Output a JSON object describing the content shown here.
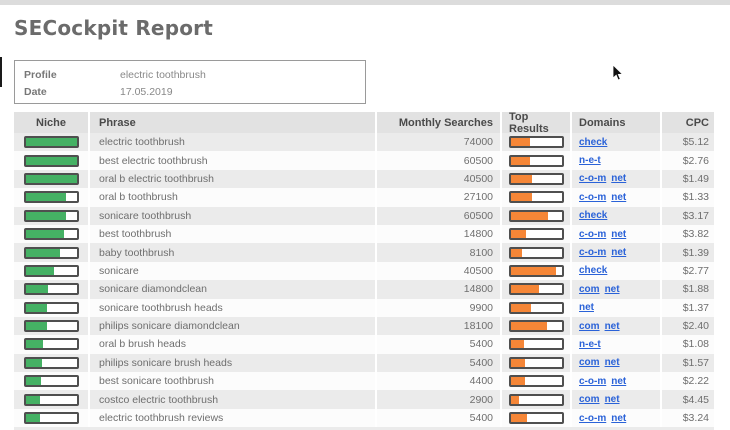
{
  "page": {
    "title": "SECockpit Report"
  },
  "profile_box": {
    "profile_label": "Profile",
    "profile_value": "electric toothbrush",
    "date_label": "Date",
    "date_value": "17.05.2019"
  },
  "colors": {
    "niche_bar_fill": "#45b164",
    "top_results_bar_fill": "#f58637",
    "link": "#2a62d8",
    "header_bg": "#e2e2e2",
    "row_alt_bg": "#ebebeb"
  },
  "table": {
    "columns": [
      "Niche",
      "Phrase",
      "Monthly Searches",
      "Top Results",
      "Domains",
      "CPC"
    ],
    "rows": [
      {
        "niche_pct": 100,
        "phrase": "electric toothbrush",
        "monthly_searches": "74000",
        "top_results_pct": 37,
        "domains": [
          "check"
        ],
        "cpc": "$5.12"
      },
      {
        "niche_pct": 100,
        "phrase": "best electric toothbrush",
        "monthly_searches": "60500",
        "top_results_pct": 37,
        "domains": [
          "n-e-t"
        ],
        "cpc": "$2.76"
      },
      {
        "niche_pct": 100,
        "phrase": "oral b electric toothbrush",
        "monthly_searches": "40500",
        "top_results_pct": 42,
        "domains": [
          "c-o-m",
          "net"
        ],
        "cpc": "$1.49"
      },
      {
        "niche_pct": 80,
        "phrase": "oral b toothbrush",
        "monthly_searches": "27100",
        "top_results_pct": 42,
        "domains": [
          "c-o-m",
          "net"
        ],
        "cpc": "$1.33"
      },
      {
        "niche_pct": 80,
        "phrase": "sonicare toothbrush",
        "monthly_searches": "60500",
        "top_results_pct": 72,
        "domains": [
          "check"
        ],
        "cpc": "$3.17"
      },
      {
        "niche_pct": 75,
        "phrase": "best toothbrush",
        "monthly_searches": "14800",
        "top_results_pct": 30,
        "domains": [
          "c-o-m",
          "net"
        ],
        "cpc": "$3.82"
      },
      {
        "niche_pct": 68,
        "phrase": "baby toothbrush",
        "monthly_searches": "8100",
        "top_results_pct": 22,
        "domains": [
          "c-o-m",
          "net"
        ],
        "cpc": "$1.39"
      },
      {
        "niche_pct": 55,
        "phrase": "sonicare",
        "monthly_searches": "40500",
        "top_results_pct": 88,
        "domains": [
          "check"
        ],
        "cpc": "$2.77"
      },
      {
        "niche_pct": 45,
        "phrase": "sonicare diamondclean",
        "monthly_searches": "14800",
        "top_results_pct": 55,
        "domains": [
          "com",
          "net"
        ],
        "cpc": "$1.88"
      },
      {
        "niche_pct": 42,
        "phrase": "sonicare toothbrush heads",
        "monthly_searches": "9900",
        "top_results_pct": 40,
        "domains": [
          "net"
        ],
        "cpc": "$1.37"
      },
      {
        "niche_pct": 42,
        "phrase": "philips sonicare diamondclean",
        "monthly_searches": "18100",
        "top_results_pct": 70,
        "domains": [
          "com",
          "net"
        ],
        "cpc": "$2.40"
      },
      {
        "niche_pct": 35,
        "phrase": "oral b brush heads",
        "monthly_searches": "5400",
        "top_results_pct": 25,
        "domains": [
          "n-e-t"
        ],
        "cpc": "$1.08"
      },
      {
        "niche_pct": 33,
        "phrase": "philips sonicare brush heads",
        "monthly_searches": "5400",
        "top_results_pct": 28,
        "domains": [
          "com",
          "net"
        ],
        "cpc": "$1.57"
      },
      {
        "niche_pct": 30,
        "phrase": "best sonicare toothbrush",
        "monthly_searches": "4400",
        "top_results_pct": 28,
        "domains": [
          "c-o-m",
          "net"
        ],
        "cpc": "$2.22"
      },
      {
        "niche_pct": 28,
        "phrase": "costco electric toothbrush",
        "monthly_searches": "2900",
        "top_results_pct": 15,
        "domains": [
          "com",
          "net"
        ],
        "cpc": "$4.45"
      },
      {
        "niche_pct": 28,
        "phrase": "electric toothbrush reviews",
        "monthly_searches": "5400",
        "top_results_pct": 32,
        "domains": [
          "c-o-m",
          "net"
        ],
        "cpc": "$3.24"
      }
    ]
  }
}
